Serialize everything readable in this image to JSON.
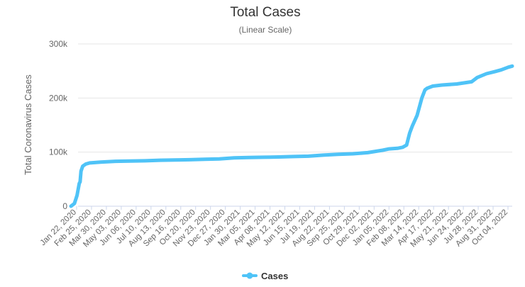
{
  "chart_data": {
    "type": "line",
    "title": "Total Cases",
    "subtitle": "(Linear Scale)",
    "xlabel": "",
    "ylabel": "Total Coronavirus Cases",
    "ylim": [
      0,
      300000
    ],
    "yticks": [
      0,
      100000,
      200000,
      300000
    ],
    "ytick_labels": [
      "0",
      "100k",
      "200k",
      "300k"
    ],
    "xtick_labels": [
      "Jan 22, 2020",
      "Feb 25, 2020",
      "Mar 30, 2020",
      "May 03, 2020",
      "Jun 06, 2020",
      "Jul 10, 2020",
      "Aug 13, 2020",
      "Sep 16, 2020",
      "Oct 20, 2020",
      "Nov 23, 2020",
      "Dec 27, 2020",
      "Jan 30, 2021",
      "Mar 05, 2021",
      "Apr 08, 2021",
      "May 12, 2021",
      "Jun 15, 2021",
      "Jul 19, 2021",
      "Aug 22, 2021",
      "Sep 25, 2021",
      "Oct 29, 2021",
      "Dec 02, 2021",
      "Jan 05, 2022",
      "Feb 08, 2022",
      "Mar 14, 2022",
      "Apr 17, 2022",
      "May 21, 2022",
      "Jun 24, 2022",
      "Jul 28, 2022",
      "Aug 31, 2022",
      "Oct 04, 2022"
    ],
    "grid": true,
    "legend_position": "bottom-center",
    "series": [
      {
        "name": "Cases",
        "color": "#4fc3f7",
        "points": [
          [
            "2020-01-22",
            0
          ],
          [
            "2020-01-30",
            5000
          ],
          [
            "2020-02-05",
            20000
          ],
          [
            "2020-02-10",
            42000
          ],
          [
            "2020-02-12",
            45000
          ],
          [
            "2020-02-14",
            65000
          ],
          [
            "2020-02-18",
            74000
          ],
          [
            "2020-02-25",
            78000
          ],
          [
            "2020-03-05",
            80000
          ],
          [
            "2020-03-30",
            81500
          ],
          [
            "2020-05-03",
            83000
          ],
          [
            "2020-06-06",
            83500
          ],
          [
            "2020-07-10",
            84000
          ],
          [
            "2020-08-13",
            85000
          ],
          [
            "2020-09-16",
            85500
          ],
          [
            "2020-10-20",
            86000
          ],
          [
            "2020-11-23",
            86800
          ],
          [
            "2020-12-27",
            87500
          ],
          [
            "2021-01-30",
            89500
          ],
          [
            "2021-03-05",
            90000
          ],
          [
            "2021-04-08",
            90500
          ],
          [
            "2021-05-12",
            91000
          ],
          [
            "2021-06-15",
            91800
          ],
          [
            "2021-07-19",
            92500
          ],
          [
            "2021-08-22",
            94500
          ],
          [
            "2021-09-25",
            96000
          ],
          [
            "2021-10-29",
            97000
          ],
          [
            "2021-12-02",
            99000
          ],
          [
            "2022-01-05",
            103500
          ],
          [
            "2022-01-20",
            106000
          ],
          [
            "2022-02-08",
            107000
          ],
          [
            "2022-02-20",
            109000
          ],
          [
            "2022-03-01",
            113000
          ],
          [
            "2022-03-08",
            135000
          ],
          [
            "2022-03-14",
            148000
          ],
          [
            "2022-03-25",
            168000
          ],
          [
            "2022-04-05",
            200000
          ],
          [
            "2022-04-12",
            215000
          ],
          [
            "2022-04-17",
            218000
          ],
          [
            "2022-04-30",
            222000
          ],
          [
            "2022-05-21",
            224000
          ],
          [
            "2022-06-24",
            226000
          ],
          [
            "2022-07-28",
            230000
          ],
          [
            "2022-08-10",
            238000
          ],
          [
            "2022-08-31",
            245000
          ],
          [
            "2022-09-20",
            249000
          ],
          [
            "2022-10-04",
            252000
          ],
          [
            "2022-10-20",
            257000
          ],
          [
            "2022-10-29",
            259000
          ]
        ]
      }
    ]
  }
}
